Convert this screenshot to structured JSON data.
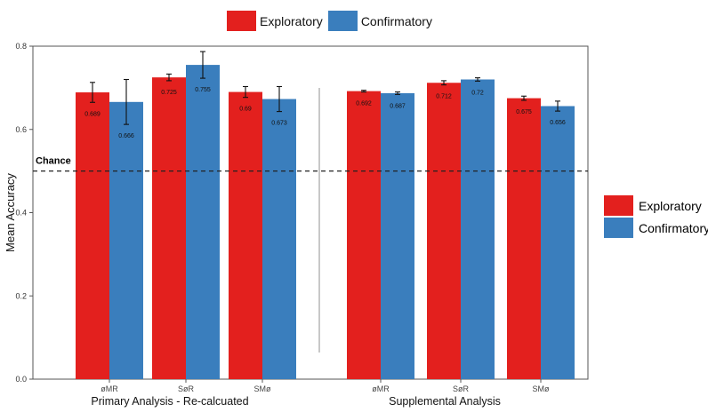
{
  "colors": {
    "exploratory": "#E3201E",
    "confirmatory": "#3A7EBD"
  },
  "legend": {
    "items": [
      "Exploratory",
      "Confirmatory"
    ]
  },
  "chart_data": {
    "type": "bar",
    "ylabel": "Mean Accuracy",
    "ylim": [
      0,
      0.8
    ],
    "yticks": [
      "0.0",
      "0.2",
      "0.4",
      "0.6",
      "0.8"
    ],
    "chance": {
      "label": "Chance",
      "value": 0.5
    },
    "panels": [
      {
        "label": "Primary Analysis - Re-calcuated",
        "categories": [
          "øMR",
          "SøR",
          "SMø"
        ],
        "series": [
          {
            "name": "Exploratory",
            "values": [
              0.689,
              0.725,
              0.69
            ],
            "err": [
              0.024,
              0.008,
              0.013
            ],
            "labels": [
              "0.689",
              "0.725",
              "0.69"
            ]
          },
          {
            "name": "Confirmatory",
            "values": [
              0.666,
              0.755,
              0.673
            ],
            "err": [
              0.054,
              0.032,
              0.03
            ],
            "labels": [
              "0.666",
              "0.755",
              "0.673"
            ]
          }
        ]
      },
      {
        "label": "Supplemental Analysis",
        "categories": [
          "øMR",
          "SøR",
          "SMø"
        ],
        "series": [
          {
            "name": "Exploratory",
            "values": [
              0.692,
              0.712,
              0.675
            ],
            "err": [
              0.002,
              0.005,
              0.005
            ],
            "labels": [
              "0.692",
              "0.712",
              "0.675"
            ]
          },
          {
            "name": "Confirmatory",
            "values": [
              0.687,
              0.72,
              0.656
            ],
            "err": [
              0.003,
              0.004,
              0.012
            ],
            "labels": [
              "0.687",
              "0.72",
              "0.656"
            ]
          }
        ]
      }
    ]
  }
}
